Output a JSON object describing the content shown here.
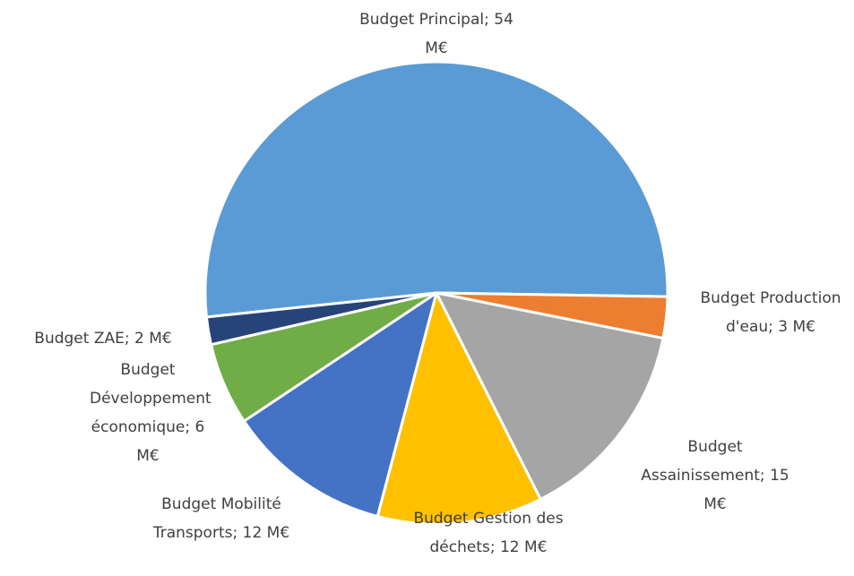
{
  "chart_data": {
    "type": "pie",
    "categories": [
      "Budget Principal",
      "Budget Production d'eau",
      "Budget Assainissement",
      "Budget Gestion des déchets",
      "Budget Mobilité Transports",
      "Budget Développement économique",
      "Budget ZAE"
    ],
    "values": [
      54,
      3,
      15,
      12,
      12,
      6,
      2
    ],
    "value_labels": [
      "54 M€",
      "3 M€",
      "15 M€",
      "12 M€",
      "12 M€",
      "6 M€",
      "2 M€"
    ],
    "label_separator": "; ",
    "colors": [
      "#5b9bd5",
      "#ed7d31",
      "#a5a5a5",
      "#ffc000",
      "#4472c4",
      "#70ad47",
      "#264478"
    ]
  }
}
